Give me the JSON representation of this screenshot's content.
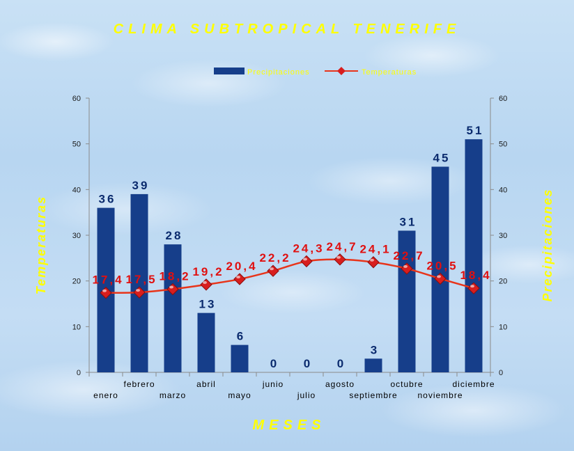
{
  "chart_data": {
    "type": "bar",
    "title": "CLIMA SUBTROPICAL TENERIFE",
    "xlabel": "MESES",
    "ylabel_left": "Temperaturas",
    "ylabel_right": "Precipitaciones",
    "ylim": [
      0,
      60
    ],
    "yticks": [
      0,
      10,
      20,
      30,
      40,
      50,
      60
    ],
    "grid": false,
    "legend_position": "top-center",
    "categories": [
      "enero",
      "febrero",
      "marzo",
      "abril",
      "mayo",
      "junio",
      "julio",
      "agosto",
      "septiembre",
      "octubre",
      "noviembre",
      "diciembre"
    ],
    "series": [
      {
        "name": "Precipitaciones",
        "type": "bar",
        "color": "#163e8a",
        "values": [
          36,
          39,
          28,
          13,
          6,
          0,
          0,
          0,
          3,
          31,
          45,
          51
        ],
        "labels": [
          "36",
          "39",
          "28",
          "13",
          "6",
          "0",
          "0",
          "0",
          "3",
          "31",
          "45",
          "51"
        ]
      },
      {
        "name": "Temperaturas",
        "type": "line",
        "color": "#e8341a",
        "values": [
          17.4,
          17.5,
          18.2,
          19.2,
          20.4,
          22.2,
          24.3,
          24.7,
          24.1,
          22.7,
          20.5,
          18.4
        ],
        "labels": [
          "17,4",
          "17,5",
          "18,2",
          "19,2",
          "20,4",
          "22,2",
          "24,3",
          "24,7",
          "24,1",
          "22,7",
          "20,5",
          "18,4"
        ]
      }
    ]
  },
  "colors": {
    "title": "#ffff00",
    "bar": "#163e8a",
    "line": "#e8341a",
    "marker": "#d81e1e",
    "bar_label": "#0b2b6e",
    "line_label": "#e01010"
  }
}
